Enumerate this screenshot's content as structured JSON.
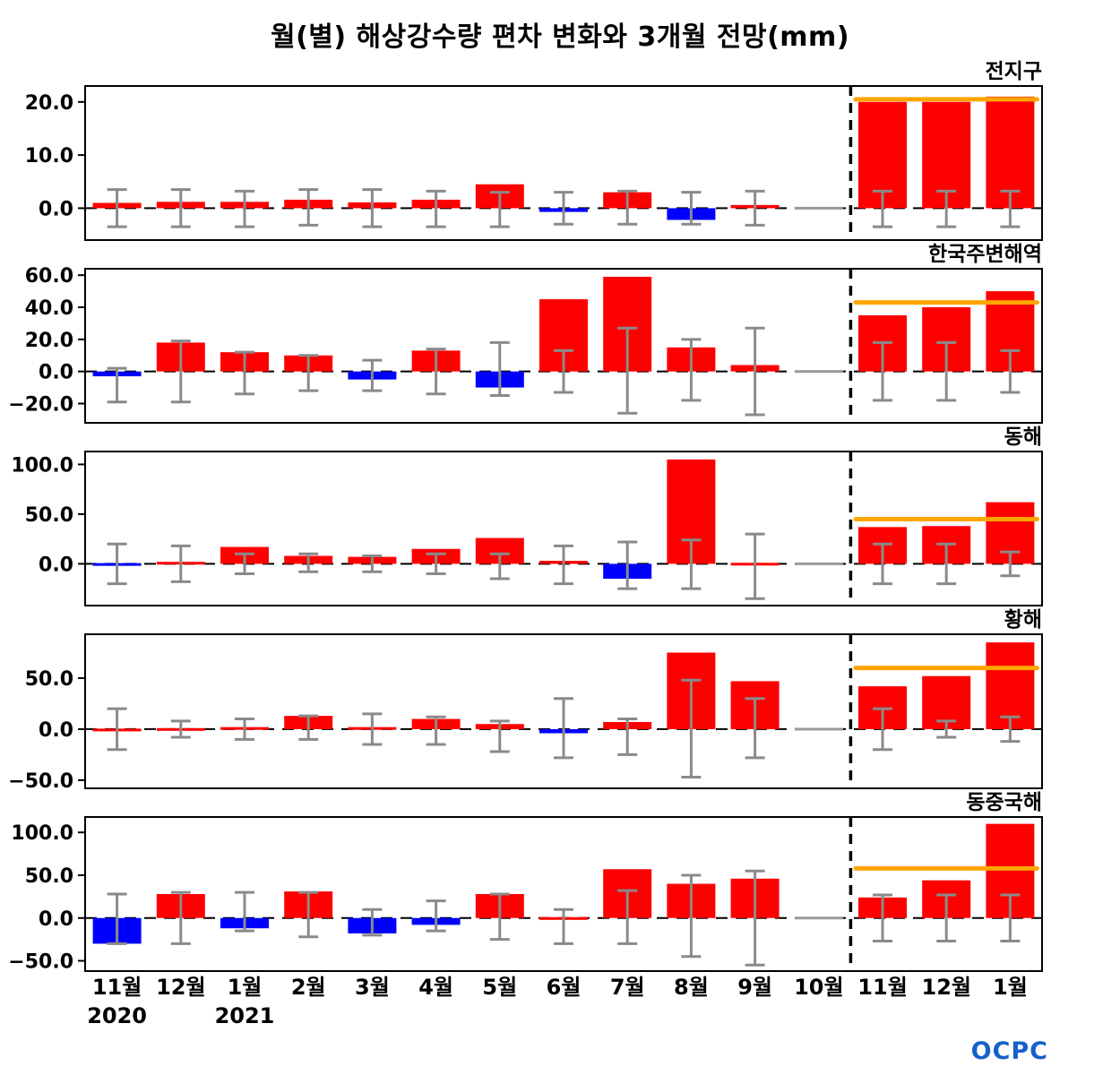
{
  "title": "월(별) 해상강수량 편차 변화와 3개월 전망(mm)",
  "logo": "OCPC",
  "x_labels": [
    "11월",
    "12월",
    "1월",
    "2월",
    "3월",
    "4월",
    "5월",
    "6월",
    "7월",
    "8월",
    "9월",
    "10월",
    "11월",
    "12월",
    "1월"
  ],
  "year_labels": [
    {
      "index": 0,
      "label": "2020"
    },
    {
      "index": 2,
      "label": "2021"
    }
  ],
  "forecast_start_index": 12,
  "colors": {
    "positive": "#ff0000",
    "negative": "#0000ff",
    "error_bar": "#8a8a8a",
    "forecast_line": "#ffa500",
    "zero_marker": "#999999"
  },
  "chart_data": [
    {
      "type": "bar",
      "panel_label": "전지구",
      "yticks": [
        0.0,
        10.0,
        20.0
      ],
      "ylim": [
        -6,
        23
      ],
      "values": [
        1.0,
        1.2,
        1.2,
        1.6,
        1.1,
        1.6,
        4.5,
        -0.7,
        3.0,
        -2.2,
        0.6,
        0,
        20.0,
        20.0,
        21.0
      ],
      "err_lo": [
        -3.5,
        -3.5,
        -3.5,
        -3.2,
        -3.5,
        -3.5,
        -3.5,
        -3.0,
        -3.0,
        -3.0,
        -3.2,
        0,
        -3.5,
        -3.5,
        -3.5
      ],
      "err_hi": [
        3.5,
        3.5,
        3.2,
        3.5,
        3.5,
        3.2,
        3.0,
        3.0,
        3.2,
        3.0,
        3.2,
        0,
        3.2,
        3.2,
        3.2
      ],
      "forecast_line": 20.5
    },
    {
      "type": "bar",
      "panel_label": "한국주변해역",
      "yticks": [
        -20.0,
        0.0,
        20.0,
        40.0,
        60.0
      ],
      "ylim": [
        -32,
        64
      ],
      "values": [
        -3,
        18,
        12,
        10,
        -5,
        13,
        -10,
        45,
        59,
        15,
        4,
        0,
        35,
        40,
        50
      ],
      "err_lo": [
        -19,
        -19,
        -14,
        -12,
        -12,
        -14,
        -15,
        -13,
        -26,
        -18,
        -27,
        0,
        -18,
        -18,
        -13
      ],
      "err_hi": [
        2,
        19,
        12,
        10,
        7,
        14,
        18,
        13,
        27,
        20,
        27,
        0,
        18,
        18,
        13
      ],
      "forecast_line": 43
    },
    {
      "type": "bar",
      "panel_label": "동해",
      "yticks": [
        0.0,
        50.0,
        100.0
      ],
      "ylim": [
        -42,
        113
      ],
      "values": [
        -2,
        2,
        17,
        8,
        7,
        15,
        26,
        3,
        -15,
        105,
        1,
        0,
        37,
        38,
        62
      ],
      "err_lo": [
        -20,
        -18,
        -10,
        -8,
        -8,
        -10,
        -15,
        -20,
        -25,
        -25,
        -35,
        0,
        -20,
        -20,
        -12
      ],
      "err_hi": [
        20,
        18,
        10,
        10,
        8,
        10,
        10,
        18,
        22,
        24,
        30,
        0,
        20,
        20,
        12
      ],
      "forecast_line": 45
    },
    {
      "type": "bar",
      "panel_label": "황해",
      "yticks": [
        -50.0,
        0.0,
        50.0
      ],
      "ylim": [
        -58,
        93
      ],
      "values": [
        0.5,
        1,
        2,
        13,
        2,
        10,
        5,
        -4,
        7,
        75,
        47,
        0,
        42,
        52,
        85
      ],
      "err_lo": [
        -20,
        -8,
        -10,
        -10,
        -15,
        -15,
        -22,
        -28,
        -25,
        -47,
        -28,
        0,
        -20,
        -8,
        -12
      ],
      "err_hi": [
        20,
        8,
        10,
        13,
        15,
        12,
        8,
        30,
        10,
        48,
        30,
        0,
        20,
        8,
        12
      ],
      "forecast_line": 60
    },
    {
      "type": "bar",
      "panel_label": "동중국해",
      "yticks": [
        -50.0,
        0.0,
        50.0,
        100.0
      ],
      "ylim": [
        -62,
        118
      ],
      "values": [
        -30,
        28,
        -12,
        31,
        -18,
        -8,
        28,
        1,
        57,
        40,
        46,
        0,
        24,
        44,
        110
      ],
      "err_lo": [
        -30,
        -30,
        -15,
        -22,
        -20,
        -15,
        -25,
        -30,
        -30,
        -45,
        -55,
        0,
        -27,
        -27,
        -27
      ],
      "err_hi": [
        28,
        30,
        30,
        30,
        10,
        20,
        28,
        10,
        32,
        50,
        55,
        0,
        27,
        27,
        27
      ],
      "forecast_line": 58
    }
  ]
}
